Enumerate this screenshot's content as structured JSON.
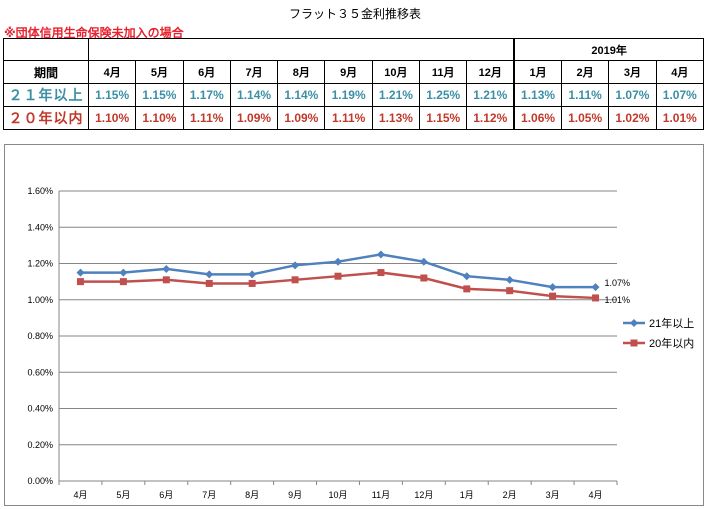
{
  "title": "フラット３５金利推移表",
  "subtitle": "※団体信用生命保険未加入の場合",
  "table": {
    "year_label": "2019年",
    "period_label": "期間",
    "months": [
      "4月",
      "5月",
      "6月",
      "7月",
      "8月",
      "9月",
      "10月",
      "11月",
      "12月",
      "1月",
      "2月",
      "3月",
      "4月"
    ],
    "rows": [
      {
        "label": "２１年以上",
        "values": [
          "1.15%",
          "1.15%",
          "1.17%",
          "1.14%",
          "1.14%",
          "1.19%",
          "1.21%",
          "1.25%",
          "1.21%",
          "1.13%",
          "1.11%",
          "1.07%",
          "1.07%"
        ]
      },
      {
        "label": "２０年以内",
        "values": [
          "1.10%",
          "1.10%",
          "1.11%",
          "1.09%",
          "1.09%",
          "1.11%",
          "1.13%",
          "1.15%",
          "1.12%",
          "1.06%",
          "1.05%",
          "1.02%",
          "1.01%"
        ]
      }
    ]
  },
  "colors": {
    "series_21": "#4f81bd",
    "series_20": "#c0504d",
    "grid": "#868686"
  },
  "chart_data": {
    "type": "line",
    "categories": [
      "4月",
      "5月",
      "6月",
      "7月",
      "8月",
      "9月",
      "10月",
      "11月",
      "12月",
      "1月",
      "2月",
      "3月",
      "4月"
    ],
    "series": [
      {
        "name": "21年以上",
        "values": [
          1.15,
          1.15,
          1.17,
          1.14,
          1.14,
          1.19,
          1.21,
          1.25,
          1.21,
          1.13,
          1.11,
          1.07,
          1.07
        ],
        "marker": "diamond",
        "end_label": "1.07%"
      },
      {
        "name": "20年以内",
        "values": [
          1.1,
          1.1,
          1.11,
          1.09,
          1.09,
          1.11,
          1.13,
          1.15,
          1.12,
          1.06,
          1.05,
          1.02,
          1.01
        ],
        "marker": "square",
        "end_label": "1.01%"
      }
    ],
    "y_ticks": [
      "0.00%",
      "0.20%",
      "0.40%",
      "0.60%",
      "0.80%",
      "1.00%",
      "1.20%",
      "1.40%",
      "1.60%"
    ],
    "ylim": [
      0,
      1.6
    ],
    "grid": true,
    "legend_position": "right"
  }
}
